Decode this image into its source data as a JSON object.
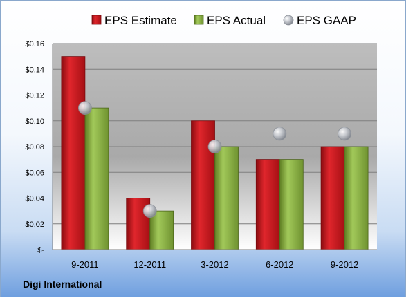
{
  "company_label": "Digi International",
  "colors": {
    "estimate": "#c8161d",
    "actual": "#8cb33d",
    "gaap": "#b8bcc4"
  },
  "chart_data": {
    "type": "bar",
    "categories": [
      "9-2011",
      "12-2011",
      "3-2012",
      "6-2012",
      "9-2012"
    ],
    "series": [
      {
        "name": "EPS Estimate",
        "kind": "bar",
        "values": [
          0.15,
          0.04,
          0.1,
          0.07,
          0.08
        ]
      },
      {
        "name": "EPS Actual",
        "kind": "bar",
        "values": [
          0.11,
          0.03,
          0.08,
          0.07,
          0.08
        ]
      },
      {
        "name": "EPS GAAP",
        "kind": "marker",
        "values": [
          0.11,
          0.03,
          0.08,
          0.09,
          0.09
        ]
      }
    ],
    "ylim": [
      0,
      0.16
    ],
    "yticks": [
      0,
      0.02,
      0.04,
      0.06,
      0.08,
      0.1,
      0.12,
      0.14,
      0.16
    ],
    "ytick_labels": [
      "$-",
      "$0.02",
      "$0.04",
      "$0.06",
      "$0.08",
      "$0.10",
      "$0.12",
      "$0.14",
      "$0.16"
    ],
    "grid": true,
    "legend_position": "top"
  }
}
